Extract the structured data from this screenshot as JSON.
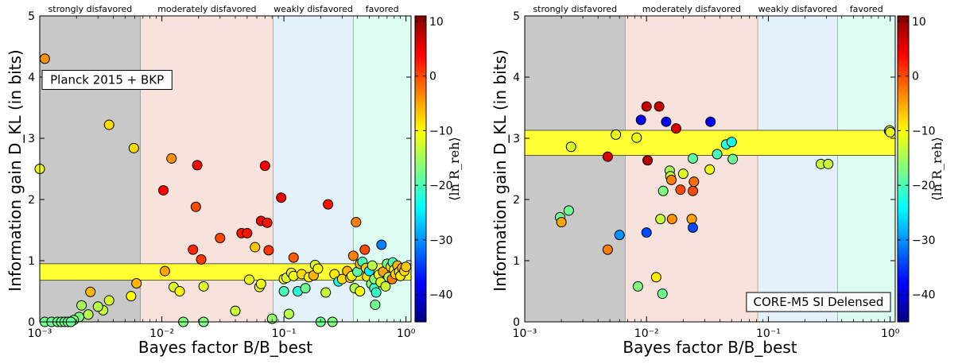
{
  "figure": {
    "colorbar_label": "⟨ln R_reh⟩",
    "color_scale": {
      "min": -45,
      "max": 11,
      "stops": [
        "#00007f",
        "#0000ff",
        "#0080ff",
        "#00ffff",
        "#80ff80",
        "#ffff00",
        "#ff8000",
        "#ff0000",
        "#800000"
      ]
    }
  },
  "chart_data": [
    {
      "type": "scatter",
      "id": "left",
      "xlabel": "Bayes factor B/B_best",
      "ylabel": "Information gain D_KL (in bits)",
      "xscale": "log",
      "xlim": [
        0.001,
        1.1
      ],
      "ylim": [
        0,
        5
      ],
      "x_ticks": [
        "10⁻³",
        "10⁻²",
        "10⁻¹",
        "10⁰"
      ],
      "y_ticks": [
        "0",
        "1",
        "2",
        "3",
        "4",
        "5"
      ],
      "colorbar_ticks": [
        "10",
        "0",
        "−10",
        "−20",
        "−30",
        "−40"
      ],
      "regions": [
        {
          "label": "strongly disfavored",
          "from": 0.001,
          "to": 0.0067,
          "color": "#c8c8c8"
        },
        {
          "label": "moderately disfavored",
          "from": 0.0067,
          "to": 0.082,
          "color": "#f7e3dc"
        },
        {
          "label": "weakly disfavored",
          "from": 0.082,
          "to": 0.37,
          "color": "#e3f1fa"
        },
        {
          "label": "favored",
          "from": 0.37,
          "to": 1.1,
          "color": "#ddfcf2"
        }
      ],
      "band": {
        "from": 0.68,
        "to": 0.95,
        "color": "#ffff33"
      },
      "annotation": "Planck 2015 + BKP",
      "annotation_position": "upper-left",
      "points": [
        {
          "x": 0.001,
          "y": 2.5,
          "c": -11
        },
        {
          "x": 0.0011,
          "y": 4.3,
          "c": -4
        },
        {
          "x": 0.0037,
          "y": 3.22,
          "c": -8
        },
        {
          "x": 0.0059,
          "y": 2.84,
          "c": -8
        },
        {
          "x": 0.0062,
          "y": 0.63,
          "c": -6
        },
        {
          "x": 0.0056,
          "y": 0.42,
          "c": -10
        },
        {
          "x": 0.0037,
          "y": 0.35,
          "c": -12
        },
        {
          "x": 0.0033,
          "y": 0.19,
          "c": -13
        },
        {
          "x": 0.003,
          "y": 0.25,
          "c": -14
        },
        {
          "x": 0.0026,
          "y": 0.49,
          "c": -6
        },
        {
          "x": 0.0025,
          "y": 0.12,
          "c": -14
        },
        {
          "x": 0.0022,
          "y": 0.27,
          "c": -15
        },
        {
          "x": 0.0021,
          "y": 0.08,
          "c": -17
        },
        {
          "x": 0.0019,
          "y": 0.03,
          "c": -17
        },
        {
          "x": 0.0011,
          "y": 0.0,
          "c": -18
        },
        {
          "x": 0.00125,
          "y": 0.0,
          "c": -18
        },
        {
          "x": 0.0014,
          "y": 0.0,
          "c": -18
        },
        {
          "x": 0.0015,
          "y": 0.0,
          "c": -18
        },
        {
          "x": 0.0016,
          "y": 0.0,
          "c": -18
        },
        {
          "x": 0.0017,
          "y": 0.0,
          "c": -18
        },
        {
          "x": 0.0018,
          "y": 0.0,
          "c": -18
        },
        {
          "x": 0.0103,
          "y": 2.15,
          "c": 4
        },
        {
          "x": 0.0106,
          "y": 0.83,
          "c": -5
        },
        {
          "x": 0.012,
          "y": 2.67,
          "c": -4
        },
        {
          "x": 0.0125,
          "y": 0.57,
          "c": -12
        },
        {
          "x": 0.014,
          "y": 0.5,
          "c": -10
        },
        {
          "x": 0.015,
          "y": 0.0,
          "c": -17
        },
        {
          "x": 0.018,
          "y": 1.18,
          "c": 2
        },
        {
          "x": 0.019,
          "y": 1.88,
          "c": 0
        },
        {
          "x": 0.0195,
          "y": 2.56,
          "c": 4
        },
        {
          "x": 0.021,
          "y": 1.02,
          "c": 1
        },
        {
          "x": 0.022,
          "y": 0.58,
          "c": -12
        },
        {
          "x": 0.022,
          "y": 0.0,
          "c": -17
        },
        {
          "x": 0.03,
          "y": 1.37,
          "c": 0
        },
        {
          "x": 0.04,
          "y": 0.18,
          "c": -13
        },
        {
          "x": 0.045,
          "y": 1.45,
          "c": 3
        },
        {
          "x": 0.05,
          "y": 1.45,
          "c": 3
        },
        {
          "x": 0.052,
          "y": 0.69,
          "c": -11
        },
        {
          "x": 0.058,
          "y": 1.22,
          "c": -7
        },
        {
          "x": 0.063,
          "y": 0.57,
          "c": -11
        },
        {
          "x": 0.065,
          "y": 0.62,
          "c": -11
        },
        {
          "x": 0.065,
          "y": 1.65,
          "c": 4
        },
        {
          "x": 0.07,
          "y": 2.55,
          "c": 4
        },
        {
          "x": 0.073,
          "y": 1.62,
          "c": 3
        },
        {
          "x": 0.075,
          "y": 1.17,
          "c": 1
        },
        {
          "x": 0.08,
          "y": 0.05,
          "c": -16
        },
        {
          "x": 0.095,
          "y": 2.03,
          "c": 5
        },
        {
          "x": 0.1,
          "y": 0.7,
          "c": -10
        },
        {
          "x": 0.1,
          "y": 0.5,
          "c": -20
        },
        {
          "x": 0.105,
          "y": 0.72,
          "c": -12
        },
        {
          "x": 0.11,
          "y": 0.13,
          "c": -14
        },
        {
          "x": 0.115,
          "y": 0.8,
          "c": -10
        },
        {
          "x": 0.12,
          "y": 0.75,
          "c": -11
        },
        {
          "x": 0.12,
          "y": 1.05,
          "c": -1
        },
        {
          "x": 0.13,
          "y": 0.5,
          "c": -22
        },
        {
          "x": 0.14,
          "y": 0.78,
          "c": -8
        },
        {
          "x": 0.15,
          "y": 0.55,
          "c": -18
        },
        {
          "x": 0.16,
          "y": 0.73,
          "c": -9
        },
        {
          "x": 0.175,
          "y": 0.76,
          "c": -6
        },
        {
          "x": 0.18,
          "y": 0.93,
          "c": -12
        },
        {
          "x": 0.19,
          "y": 0.87,
          "c": -10
        },
        {
          "x": 0.2,
          "y": 0.0,
          "c": -18
        },
        {
          "x": 0.22,
          "y": 0.48,
          "c": -13
        },
        {
          "x": 0.23,
          "y": 1.92,
          "c": 3
        },
        {
          "x": 0.25,
          "y": 0.0,
          "c": -17
        },
        {
          "x": 0.26,
          "y": 0.78,
          "c": -9
        },
        {
          "x": 0.28,
          "y": 0.66,
          "c": -23
        },
        {
          "x": 0.3,
          "y": 0.7,
          "c": -8
        },
        {
          "x": 0.33,
          "y": 0.83,
          "c": -6
        },
        {
          "x": 0.35,
          "y": 0.72,
          "c": -8
        },
        {
          "x": 0.36,
          "y": 0.75,
          "c": -11
        },
        {
          "x": 0.37,
          "y": 1.08,
          "c": -3
        },
        {
          "x": 0.38,
          "y": 0.55,
          "c": -14
        },
        {
          "x": 0.39,
          "y": 1.63,
          "c": -3
        },
        {
          "x": 0.4,
          "y": 0.82,
          "c": -19
        },
        {
          "x": 0.42,
          "y": 0.5,
          "c": -10
        },
        {
          "x": 0.42,
          "y": 0.95,
          "c": -6
        },
        {
          "x": 0.44,
          "y": 0.98,
          "c": -20
        },
        {
          "x": 0.46,
          "y": 1.18,
          "c": 0
        },
        {
          "x": 0.47,
          "y": 0.88,
          "c": -7
        },
        {
          "x": 0.48,
          "y": 0.74,
          "c": -9
        },
        {
          "x": 0.5,
          "y": 0.83,
          "c": -25
        },
        {
          "x": 0.52,
          "y": 0.62,
          "c": -17
        },
        {
          "x": 0.53,
          "y": 0.92,
          "c": -14
        },
        {
          "x": 0.55,
          "y": 0.55,
          "c": -21
        },
        {
          "x": 0.55,
          "y": 0.7,
          "c": -16
        },
        {
          "x": 0.56,
          "y": 0.28,
          "c": -18
        },
        {
          "x": 0.57,
          "y": 0.48,
          "c": -21
        },
        {
          "x": 0.6,
          "y": 0.77,
          "c": -10
        },
        {
          "x": 0.62,
          "y": 0.65,
          "c": -12
        },
        {
          "x": 0.63,
          "y": 1.26,
          "c": -31
        },
        {
          "x": 0.65,
          "y": 0.82,
          "c": -5
        },
        {
          "x": 0.68,
          "y": 0.58,
          "c": -13
        },
        {
          "x": 0.7,
          "y": 0.95,
          "c": -18
        },
        {
          "x": 0.72,
          "y": 0.73,
          "c": -14
        },
        {
          "x": 0.75,
          "y": 0.9,
          "c": -8
        },
        {
          "x": 0.77,
          "y": 0.7,
          "c": -3
        },
        {
          "x": 0.78,
          "y": 0.97,
          "c": -20
        },
        {
          "x": 0.8,
          "y": 0.85,
          "c": -10
        },
        {
          "x": 0.82,
          "y": 0.78,
          "c": -7
        },
        {
          "x": 0.85,
          "y": 0.92,
          "c": -6
        },
        {
          "x": 0.88,
          "y": 0.82,
          "c": -12
        },
        {
          "x": 0.9,
          "y": 0.75,
          "c": -9
        },
        {
          "x": 0.93,
          "y": 0.88,
          "c": -5
        },
        {
          "x": 0.97,
          "y": 0.83,
          "c": -8
        },
        {
          "x": 1.0,
          "y": 0.9,
          "c": -7
        }
      ]
    },
    {
      "type": "scatter",
      "id": "right",
      "xlabel": "Bayes factor B/B_best",
      "ylabel": "Information gain D_KL (in bits)",
      "xscale": "log",
      "xlim": [
        0.001,
        1.1
      ],
      "ylim": [
        0,
        5
      ],
      "x_ticks": [
        "10⁻³",
        "10⁻²",
        "10⁻¹",
        "10⁰"
      ],
      "y_ticks": [
        "0",
        "1",
        "2",
        "3",
        "4",
        "5"
      ],
      "colorbar_ticks": [
        "10",
        "0",
        "−10",
        "−20",
        "−30",
        "−40"
      ],
      "regions": [
        {
          "label": "strongly disfavored",
          "from": 0.001,
          "to": 0.0067,
          "color": "#c8c8c8"
        },
        {
          "label": "moderately disfavored",
          "from": 0.0067,
          "to": 0.082,
          "color": "#f7e3dc"
        },
        {
          "label": "weakly disfavored",
          "from": 0.082,
          "to": 0.37,
          "color": "#e3f1fa"
        },
        {
          "label": "favored",
          "from": 0.37,
          "to": 1.1,
          "color": "#ddfcf2"
        }
      ],
      "band": {
        "from": 2.72,
        "to": 3.13,
        "color": "#ffff33"
      },
      "annotation": "CORE-M5 SI Delensed",
      "annotation_position": "lower-right",
      "points": [
        {
          "x": 0.00195,
          "y": 1.71,
          "c": -18
        },
        {
          "x": 0.002,
          "y": 1.63,
          "c": -5
        },
        {
          "x": 0.0023,
          "y": 1.82,
          "c": -18
        },
        {
          "x": 0.0024,
          "y": 2.86,
          "c": -12
        },
        {
          "x": 0.0048,
          "y": 2.7,
          "c": 6
        },
        {
          "x": 0.0048,
          "y": 1.18,
          "c": -3
        },
        {
          "x": 0.0056,
          "y": 3.06,
          "c": -11
        },
        {
          "x": 0.006,
          "y": 1.42,
          "c": -30
        },
        {
          "x": 0.0083,
          "y": 3.01,
          "c": -11
        },
        {
          "x": 0.0085,
          "y": 0.58,
          "c": -17
        },
        {
          "x": 0.009,
          "y": 3.3,
          "c": -38
        },
        {
          "x": 0.01,
          "y": 3.52,
          "c": 7
        },
        {
          "x": 0.01,
          "y": 1.46,
          "c": -34
        },
        {
          "x": 0.0102,
          "y": 2.64,
          "c": 8
        },
        {
          "x": 0.012,
          "y": 0.73,
          "c": -9
        },
        {
          "x": 0.0127,
          "y": 3.52,
          "c": 7
        },
        {
          "x": 0.013,
          "y": 1.68,
          "c": -13
        },
        {
          "x": 0.0135,
          "y": 0.46,
          "c": -18
        },
        {
          "x": 0.0137,
          "y": 2.14,
          "c": -17
        },
        {
          "x": 0.0145,
          "y": 3.27,
          "c": -38
        },
        {
          "x": 0.0155,
          "y": 2.47,
          "c": -15
        },
        {
          "x": 0.0157,
          "y": 2.38,
          "c": -13
        },
        {
          "x": 0.016,
          "y": 2.32,
          "c": -3
        },
        {
          "x": 0.0162,
          "y": 1.68,
          "c": -4
        },
        {
          "x": 0.0175,
          "y": 3.16,
          "c": 6
        },
        {
          "x": 0.019,
          "y": 2.16,
          "c": 0
        },
        {
          "x": 0.02,
          "y": 2.42,
          "c": -12
        },
        {
          "x": 0.0235,
          "y": 1.68,
          "c": -5
        },
        {
          "x": 0.024,
          "y": 2.67,
          "c": -19
        },
        {
          "x": 0.024,
          "y": 2.14,
          "c": 0
        },
        {
          "x": 0.024,
          "y": 1.54,
          "c": -34
        },
        {
          "x": 0.0245,
          "y": 2.29,
          "c": -2
        },
        {
          "x": 0.0335,
          "y": 3.27,
          "c": -38
        },
        {
          "x": 0.033,
          "y": 2.49,
          "c": -11
        },
        {
          "x": 0.038,
          "y": 2.74,
          "c": -20
        },
        {
          "x": 0.045,
          "y": 2.9,
          "c": -22
        },
        {
          "x": 0.05,
          "y": 2.94,
          "c": -23
        },
        {
          "x": 0.051,
          "y": 2.66,
          "c": -18
        },
        {
          "x": 0.27,
          "y": 2.58,
          "c": -13
        },
        {
          "x": 0.31,
          "y": 2.58,
          "c": -13
        },
        {
          "x": 0.98,
          "y": 3.12,
          "c": -12
        },
        {
          "x": 0.99,
          "y": 3.13,
          "c": -12
        },
        {
          "x": 1.0,
          "y": 3.1,
          "c": -11
        }
      ]
    }
  ]
}
